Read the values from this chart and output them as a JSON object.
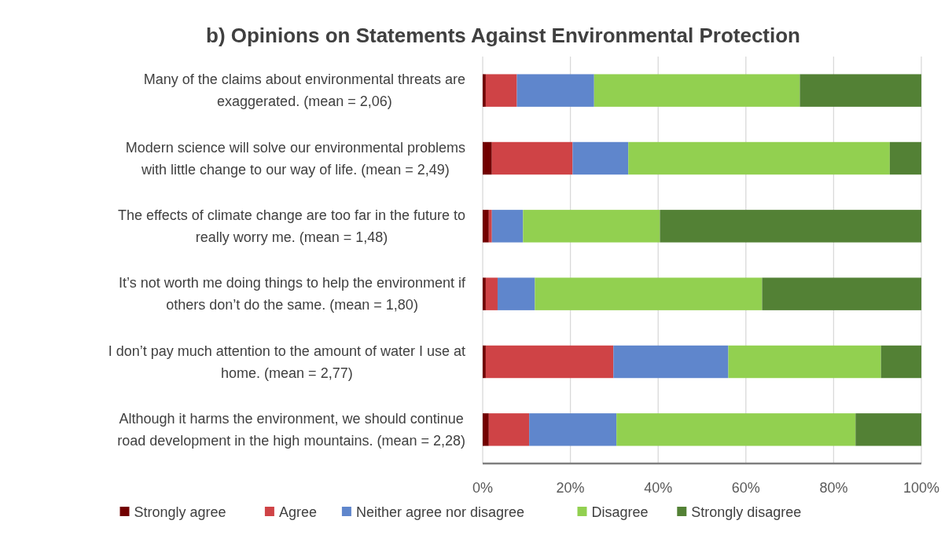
{
  "chart_data": {
    "type": "bar",
    "orientation": "horizontal",
    "stacked": true,
    "title": "b) Opinions on Statements Against Environmental Protection",
    "categories": [
      "Many of the claims about environmental threats are\nexaggerated. (mean = 2,06)",
      "Modern science will solve our environmental problems\nwith little change to our way of life. (mean = 2,49)",
      "The effects of climate change are too far in the future to\nreally worry me. (mean = 1,48)",
      "It’s not worth me doing things to help the environment if\nothers don’t do the same. (mean = 1,80)",
      "I don’t pay much attention to the amount of water I use at\nhome. (mean = 2,77)",
      "Although it harms the environment, we should continue\nroad development in the high mountains. (mean = 2,28)"
    ],
    "series": [
      {
        "name": "Strongly agree",
        "color": "#720000",
        "values": [
          0.7,
          2.1,
          1.4,
          0.7,
          0.7,
          1.4
        ]
      },
      {
        "name": "Agree",
        "color": "#cf4346",
        "values": [
          7.1,
          18.4,
          0.7,
          2.7,
          29.1,
          9.2
        ]
      },
      {
        "name": "Neither agree nor disagree",
        "color": "#5f86cc",
        "values": [
          17.6,
          12.7,
          7.1,
          8.5,
          26.2,
          19.9
        ]
      },
      {
        "name": "Disagree",
        "color": "#92d050",
        "values": [
          46.9,
          59.6,
          31.2,
          51.8,
          34.8,
          54.5
        ]
      },
      {
        "name": "Strongly disagree",
        "color": "#538135",
        "values": [
          27.7,
          7.2,
          59.6,
          36.3,
          9.2,
          15.0
        ]
      }
    ],
    "xlim": [
      0,
      100
    ],
    "xticks": [
      {
        "value": 0,
        "label": "0%"
      },
      {
        "value": 20,
        "label": "20%"
      },
      {
        "value": 40,
        "label": "40%"
      },
      {
        "value": 60,
        "label": "60%"
      },
      {
        "value": 80,
        "label": "80%"
      },
      {
        "value": 100,
        "label": "100%"
      }
    ],
    "grid": "x",
    "legend": "bottom"
  }
}
